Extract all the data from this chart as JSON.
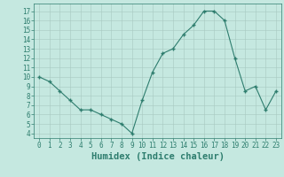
{
  "x": [
    0,
    1,
    2,
    3,
    4,
    5,
    6,
    7,
    8,
    9,
    10,
    11,
    12,
    13,
    14,
    15,
    16,
    17,
    18,
    19,
    20,
    21,
    22,
    23
  ],
  "y": [
    10,
    9.5,
    8.5,
    7.5,
    6.5,
    6.5,
    6,
    5.5,
    5,
    4,
    7.5,
    10.5,
    12.5,
    13,
    14.5,
    15.5,
    17,
    17,
    16,
    12,
    8.5,
    9,
    6.5,
    8.5
  ],
  "line_color": "#2e7d6e",
  "marker": "+",
  "marker_size": 3,
  "marker_linewidth": 1.0,
  "background_color": "#c5e8e0",
  "grid_color": "#a8c8c0",
  "xlabel": "Humidex (Indice chaleur)",
  "xlabel_fontsize": 7.5,
  "ytick_labels": [
    "4",
    "5",
    "6",
    "7",
    "8",
    "9",
    "10",
    "11",
    "12",
    "13",
    "14",
    "15",
    "16",
    "17"
  ],
  "ytick_vals": [
    4,
    5,
    6,
    7,
    8,
    9,
    10,
    11,
    12,
    13,
    14,
    15,
    16,
    17
  ],
  "ylim": [
    3.5,
    17.8
  ],
  "xlim": [
    -0.5,
    23.5
  ],
  "xtick_vals": [
    0,
    1,
    2,
    3,
    4,
    5,
    6,
    7,
    8,
    9,
    10,
    11,
    12,
    13,
    14,
    15,
    16,
    17,
    18,
    19,
    20,
    21,
    22,
    23
  ],
  "tick_label_fontsize": 5.5,
  "axis_color": "#2e7d6e",
  "linewidth": 0.8
}
